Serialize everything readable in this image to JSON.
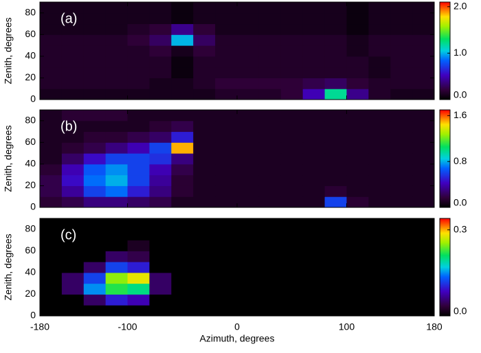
{
  "chart_data": [
    {
      "type": "heatmap",
      "title": "(a)",
      "y_label": "Zenith, degrees",
      "xlim": [
        -180,
        180
      ],
      "ylim": [
        0,
        90
      ],
      "xticks": [
        -180,
        -100,
        0,
        100,
        180
      ],
      "yticks": [
        0,
        20,
        40,
        60,
        80
      ],
      "x_bins": [
        -180,
        -160,
        -140,
        -120,
        -100,
        -80,
        -60,
        -40,
        -20,
        0,
        20,
        40,
        60,
        80,
        100,
        120,
        140,
        160,
        180
      ],
      "y_bins": [
        0,
        10,
        20,
        30,
        40,
        50,
        60,
        70,
        80,
        90
      ],
      "z": [
        [
          0.1,
          0.1,
          0.1,
          0.1,
          0.1,
          0.1,
          0.1,
          0.1,
          0.15,
          0.15,
          0.15,
          0.2,
          0.5,
          1.2,
          0.4,
          0.15,
          0.1,
          0.1
        ],
        [
          0.15,
          0.15,
          0.15,
          0.15,
          0.15,
          0.1,
          0.1,
          0.15,
          0.2,
          0.2,
          0.2,
          0.2,
          0.25,
          0.3,
          0.2,
          0.15,
          0.15,
          0.15
        ],
        [
          0.15,
          0.15,
          0.15,
          0.15,
          0.15,
          0.15,
          0.05,
          0.15,
          0.15,
          0.15,
          0.15,
          0.15,
          0.15,
          0.15,
          0.15,
          0.1,
          0.15,
          0.15
        ],
        [
          0.15,
          0.15,
          0.15,
          0.15,
          0.15,
          0.15,
          0.05,
          0.15,
          0.15,
          0.15,
          0.15,
          0.15,
          0.15,
          0.15,
          0.15,
          0.1,
          0.15,
          0.15
        ],
        [
          0.15,
          0.15,
          0.15,
          0.15,
          0.15,
          0.2,
          0.1,
          0.2,
          0.15,
          0.15,
          0.15,
          0.15,
          0.15,
          0.15,
          0.1,
          0.15,
          0.15,
          0.15
        ],
        [
          0.15,
          0.15,
          0.15,
          0.15,
          0.2,
          0.3,
          1.0,
          0.3,
          0.15,
          0.15,
          0.15,
          0.15,
          0.15,
          0.15,
          0.1,
          0.15,
          0.15,
          0.15
        ],
        [
          0.1,
          0.1,
          0.1,
          0.1,
          0.15,
          0.2,
          0.4,
          0.2,
          0.1,
          0.1,
          0.1,
          0.1,
          0.1,
          0.1,
          0.05,
          0.1,
          0.1,
          0.1
        ],
        [
          0.1,
          0.1,
          0.1,
          0.1,
          0.1,
          0.1,
          0.05,
          0.1,
          0.1,
          0.1,
          0.1,
          0.1,
          0.1,
          0.1,
          0.05,
          0.1,
          0.1,
          0.1
        ],
        [
          0.1,
          0.1,
          0.1,
          0.1,
          0.1,
          0.1,
          0.05,
          0.1,
          0.1,
          0.1,
          0.1,
          0.1,
          0.1,
          0.1,
          0.05,
          0.1,
          0.1,
          0.1
        ]
      ],
      "zlim": [
        0,
        2.1
      ],
      "zticks": [
        {
          "value": 0,
          "label": "0.0"
        },
        {
          "value": 1,
          "label": "1.0"
        },
        {
          "value": 2,
          "label": "2.0"
        }
      ]
    },
    {
      "type": "heatmap",
      "title": "(b)",
      "y_label": "Zenith, degrees",
      "xlim": [
        -180,
        180
      ],
      "ylim": [
        0,
        90
      ],
      "xticks": [
        -180,
        -100,
        0,
        100,
        180
      ],
      "yticks": [
        0,
        20,
        40,
        60,
        80
      ],
      "x_bins": [
        -180,
        -160,
        -140,
        -120,
        -100,
        -80,
        -60,
        -40,
        -20,
        0,
        20,
        40,
        60,
        80,
        100,
        120,
        140,
        160,
        180
      ],
      "y_bins": [
        0,
        10,
        20,
        30,
        40,
        50,
        60,
        70,
        80,
        90
      ],
      "z": [
        [
          0.15,
          0.2,
          0.3,
          0.3,
          0.25,
          0.2,
          0.1,
          0.1,
          0.1,
          0.1,
          0.1,
          0.1,
          0.1,
          0.6,
          0.15,
          0.1,
          0.1,
          0.1
        ],
        [
          0.2,
          0.35,
          0.6,
          0.7,
          0.5,
          0.3,
          0.15,
          0.1,
          0.1,
          0.1,
          0.1,
          0.1,
          0.1,
          0.15,
          0.1,
          0.1,
          0.1,
          0.1
        ],
        [
          0.2,
          0.45,
          0.7,
          0.8,
          0.6,
          0.35,
          0.15,
          0.1,
          0.1,
          0.1,
          0.1,
          0.1,
          0.1,
          0.1,
          0.1,
          0.1,
          0.1,
          0.1
        ],
        [
          0.15,
          0.4,
          0.65,
          0.75,
          0.6,
          0.4,
          0.2,
          0.1,
          0.1,
          0.1,
          0.1,
          0.1,
          0.1,
          0.1,
          0.1,
          0.1,
          0.1,
          0.1
        ],
        [
          0.1,
          0.25,
          0.45,
          0.6,
          0.6,
          0.55,
          0.3,
          0.1,
          0.1,
          0.1,
          0.1,
          0.1,
          0.1,
          0.1,
          0.1,
          0.1,
          0.1,
          0.1
        ],
        [
          0.1,
          0.15,
          0.2,
          0.3,
          0.4,
          0.6,
          1.5,
          0.1,
          0.1,
          0.1,
          0.1,
          0.1,
          0.1,
          0.1,
          0.1,
          0.1,
          0.1,
          0.1
        ],
        [
          0.1,
          0.1,
          0.15,
          0.15,
          0.2,
          0.25,
          0.5,
          0.1,
          0.1,
          0.1,
          0.1,
          0.1,
          0.1,
          0.1,
          0.1,
          0.1,
          0.1,
          0.1
        ],
        [
          0.1,
          0.1,
          0.1,
          0.1,
          0.1,
          0.15,
          0.2,
          0.1,
          0.1,
          0.1,
          0.1,
          0.1,
          0.1,
          0.1,
          0.1,
          0.1,
          0.1,
          0.1
        ],
        [
          0.1,
          0.15,
          0.15,
          0.15,
          0.1,
          0.1,
          0.1,
          0.1,
          0.1,
          0.1,
          0.1,
          0.1,
          0.1,
          0.1,
          0.1,
          0.1,
          0.1,
          0.1
        ]
      ],
      "zlim": [
        0,
        1.7
      ],
      "zticks": [
        {
          "value": 0,
          "label": "0.0"
        },
        0.8,
        1.6
      ]
    },
    {
      "type": "heatmap",
      "title": "(c)",
      "y_label": "Zenith, degrees",
      "x_label": "Azimuth, degrees",
      "xlim": [
        -180,
        180
      ],
      "ylim": [
        0,
        90
      ],
      "xticks": [
        -180,
        -100,
        0,
        100,
        180
      ],
      "yticks": [
        0,
        20,
        40,
        60,
        80
      ],
      "x_bins": [
        -180,
        -160,
        -140,
        -120,
        -100,
        -80,
        -60,
        -40,
        -20,
        0,
        20,
        40,
        60,
        80,
        100,
        120,
        140,
        160,
        180
      ],
      "y_bins": [
        0,
        10,
        20,
        30,
        40,
        50,
        60,
        70,
        80,
        90
      ],
      "z": [
        [
          0,
          0,
          0,
          0,
          0,
          0,
          0,
          0,
          0,
          0,
          0,
          0,
          0,
          0,
          0,
          0,
          0,
          0
        ],
        [
          0,
          0,
          0.05,
          0.1,
          0.08,
          0,
          0,
          0,
          0,
          0,
          0,
          0,
          0,
          0,
          0,
          0,
          0,
          0
        ],
        [
          0,
          0.05,
          0.15,
          0.22,
          0.2,
          0.05,
          0,
          0,
          0,
          0,
          0,
          0,
          0,
          0,
          0,
          0,
          0,
          0
        ],
        [
          0,
          0.05,
          0.12,
          0.25,
          0.28,
          0.05,
          0,
          0,
          0,
          0,
          0,
          0,
          0,
          0,
          0,
          0,
          0,
          0
        ],
        [
          0,
          0,
          0.05,
          0.12,
          0.1,
          0,
          0,
          0,
          0,
          0,
          0,
          0,
          0,
          0,
          0,
          0,
          0,
          0
        ],
        [
          0,
          0,
          0,
          0.05,
          0.04,
          0,
          0,
          0,
          0,
          0,
          0,
          0,
          0,
          0,
          0,
          0,
          0,
          0
        ],
        [
          0,
          0,
          0,
          0,
          0.02,
          0,
          0,
          0,
          0,
          0,
          0,
          0,
          0,
          0,
          0,
          0,
          0,
          0
        ],
        [
          0,
          0,
          0,
          0,
          0,
          0,
          0,
          0,
          0,
          0,
          0,
          0,
          0,
          0,
          0,
          0,
          0,
          0
        ],
        [
          0,
          0,
          0,
          0,
          0,
          0,
          0,
          0,
          0,
          0,
          0,
          0,
          0,
          0,
          0,
          0,
          0,
          0
        ]
      ],
      "zlim": [
        0,
        0.34
      ],
      "zticks": [
        {
          "value": 0,
          "label": "0.0"
        },
        0.3
      ]
    }
  ]
}
